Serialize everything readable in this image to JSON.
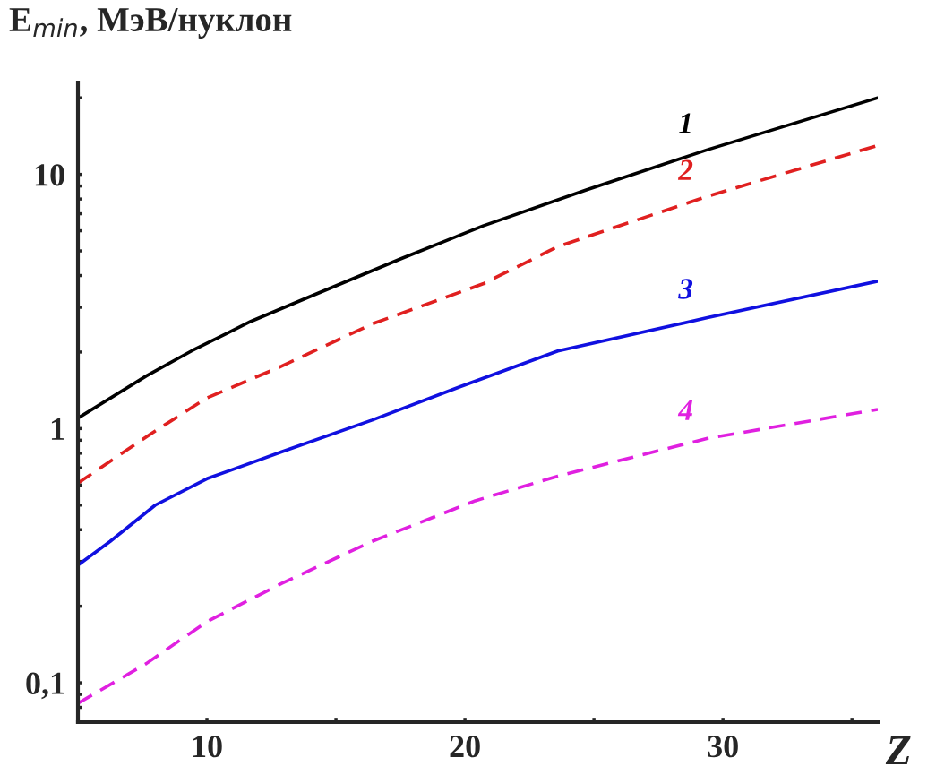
{
  "chart_data": {
    "type": "line",
    "xlabel": "Z",
    "ylabel": "E$_{min}$, МэВ/нуклон",
    "log": "y",
    "xlim": [
      5,
      36
    ],
    "ylim": [
      0.07,
      23
    ],
    "xticks": [
      10,
      {
        "value": 15,
        "label": null
      },
      20,
      {
        "value": 25,
        "label": null
      },
      30,
      {
        "value": 35,
        "label": null
      }
    ],
    "yticks": [
      {
        "value": 0.08,
        "label": null
      },
      {
        "value": 0.09,
        "label": null
      },
      {
        "value": 0.1,
        "label": "0,1"
      },
      {
        "value": 0.2,
        "label": null
      },
      {
        "value": 0.3,
        "label": null
      },
      {
        "value": 0.4,
        "label": null
      },
      {
        "value": 0.5,
        "label": null
      },
      {
        "value": 0.6,
        "label": null
      },
      {
        "value": 0.7,
        "label": null
      },
      {
        "value": 0.8,
        "label": null
      },
      {
        "value": 0.9,
        "label": null
      },
      1,
      {
        "value": 2,
        "label": null
      },
      {
        "value": 3,
        "label": null
      },
      {
        "value": 4,
        "label": null
      },
      {
        "value": 5,
        "label": null
      },
      {
        "value": 6,
        "label": null
      },
      {
        "value": 7,
        "label": null
      },
      {
        "value": 8,
        "label": null
      },
      {
        "value": 9,
        "label": null
      },
      10,
      {
        "value": 20,
        "label": null
      }
    ],
    "grid": false,
    "legend": false,
    "marker": "none",
    "series": [
      {
        "name": "1",
        "color": "#000000",
        "line_style": "solid",
        "x": [
          5,
          7.65,
          9.4,
          11.7,
          14.1,
          17.5,
          20.7,
          24.7,
          29.4,
          36
        ],
        "values": [
          1.1,
          1.61,
          2.02,
          2.64,
          3.34,
          4.65,
          6.27,
          8.68,
          12.5,
          20.0
        ]
      },
      {
        "name": "2",
        "color": "#e02020",
        "line_style": "dashed",
        "x": [
          5,
          7.8,
          10,
          12.9,
          16.4,
          20.7,
          23.6,
          29.4,
          36
        ],
        "values": [
          0.61,
          0.95,
          1.32,
          1.76,
          2.58,
          3.71,
          5.2,
          8.2,
          13.0
        ]
      },
      {
        "name": "3",
        "color": "#1010e0",
        "line_style": "solid",
        "x": [
          5,
          6.25,
          8,
          10,
          12.9,
          16.4,
          19.8,
          23.6,
          29.4,
          36
        ],
        "values": [
          0.29,
          0.36,
          0.5,
          0.635,
          0.81,
          1.08,
          1.46,
          2.02,
          2.73,
          3.8
        ]
      },
      {
        "name": "4",
        "color": "#e020e0",
        "line_style": "dashed",
        "x": [
          5,
          7.65,
          10,
          12.9,
          16.4,
          20.4,
          23.6,
          29.4,
          36
        ],
        "values": [
          0.083,
          0.119,
          0.174,
          0.246,
          0.36,
          0.52,
          0.65,
          0.915,
          1.19
        ]
      }
    ]
  }
}
